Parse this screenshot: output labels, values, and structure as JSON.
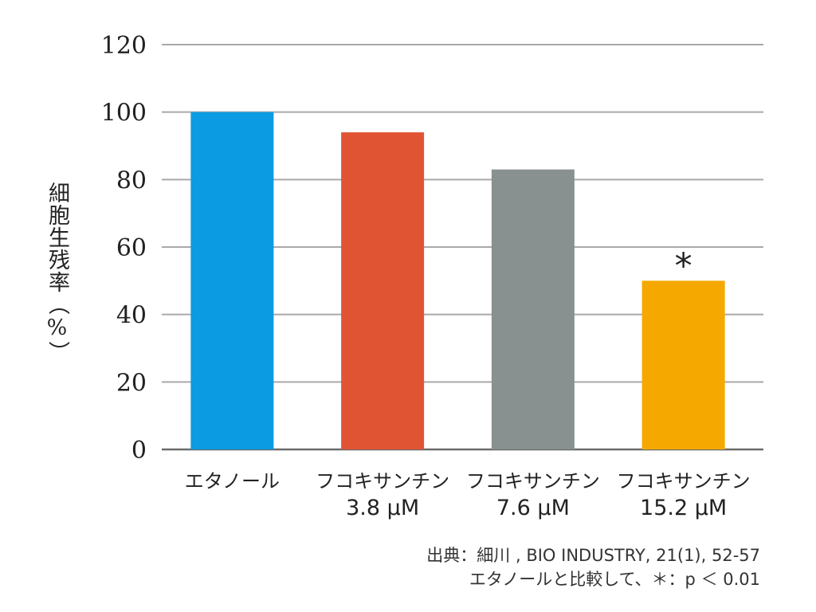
{
  "chart_data": {
    "type": "bar",
    "categories": [
      [
        "エタノール"
      ],
      [
        "フコキサンチン",
        "3.8 μM"
      ],
      [
        "フコキサンチン",
        "7.6 μM"
      ],
      [
        "フコキサンチン",
        "15.2 μM"
      ]
    ],
    "values": [
      100,
      94,
      83,
      50
    ],
    "colors": [
      "#0a9be3",
      "#e05434",
      "#899090",
      "#f5a800"
    ],
    "ylabel": "細胞生残率（%）",
    "ylim": [
      0,
      120
    ],
    "yticks": [
      0,
      20,
      40,
      60,
      80,
      100,
      120
    ],
    "grid": true,
    "annotations": [
      {
        "category_index": 3,
        "text": "*"
      }
    ]
  },
  "source": {
    "line1": "出典：細川 , BIO INDUSTRY, 21(1), 52-57",
    "line2": "エタノールと比較して、＊：p ＜ 0.01"
  }
}
